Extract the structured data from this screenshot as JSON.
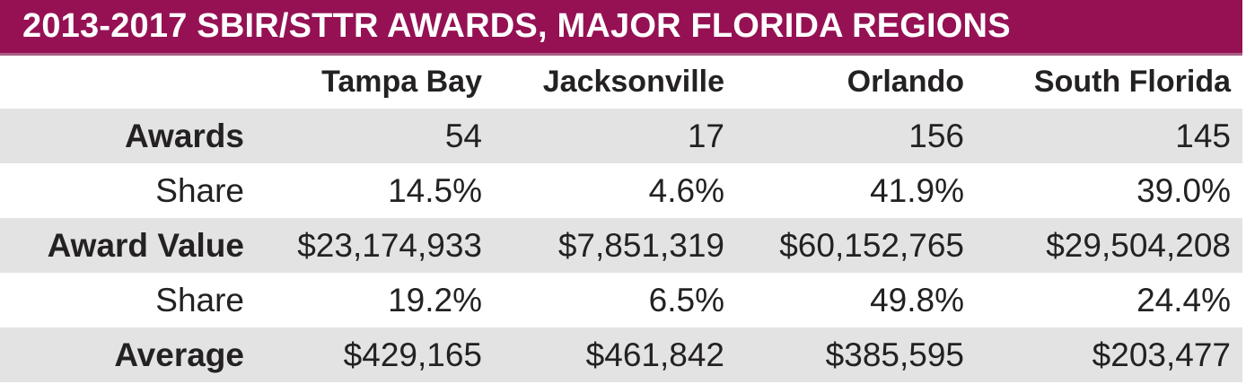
{
  "title": "2013-2017 SBIR/STTR AWARDS, MAJOR FLORIDA REGIONS",
  "colors": {
    "banner_bg": "#951154",
    "banner_edge": "#a96087",
    "banner_text": "#ffffff",
    "row_stripe": "#e3e3e3",
    "body_text": "#242122"
  },
  "table": {
    "columns": [
      "Tampa Bay",
      "Jacksonville",
      "Orlando",
      "South Florida"
    ],
    "rows": [
      {
        "label": "Awards",
        "values": [
          "54",
          "17",
          "156",
          "145"
        ]
      },
      {
        "label": "Share",
        "values": [
          "14.5%",
          "4.6%",
          "41.9%",
          "39.0%"
        ]
      },
      {
        "label": "Award Value",
        "values": [
          "$23,174,933",
          "$7,851,319",
          "$60,152,765",
          "$29,504,208"
        ]
      },
      {
        "label": "Share",
        "values": [
          "19.2%",
          "6.5%",
          "49.8%",
          "24.4%"
        ]
      },
      {
        "label": "Average",
        "values": [
          "$429,165",
          "$461,842",
          "$385,595",
          "$203,477"
        ]
      }
    ]
  },
  "chart_data": {
    "type": "table",
    "title": "2013-2017 SBIR/STTR AWARDS, MAJOR FLORIDA REGIONS",
    "categories": [
      "Tampa Bay",
      "Jacksonville",
      "Orlando",
      "South Florida"
    ],
    "series": [
      {
        "name": "Awards",
        "values": [
          54,
          17,
          156,
          145
        ]
      },
      {
        "name": "Awards Share (%)",
        "values": [
          14.5,
          4.6,
          41.9,
          39.0
        ]
      },
      {
        "name": "Award Value ($)",
        "values": [
          23174933,
          7851319,
          60152765,
          29504208
        ]
      },
      {
        "name": "Value Share (%)",
        "values": [
          19.2,
          6.5,
          49.8,
          24.4
        ]
      },
      {
        "name": "Average Award ($)",
        "values": [
          429165,
          461842,
          385595,
          203477
        ]
      }
    ],
    "legend_position": "none",
    "grid": false
  }
}
